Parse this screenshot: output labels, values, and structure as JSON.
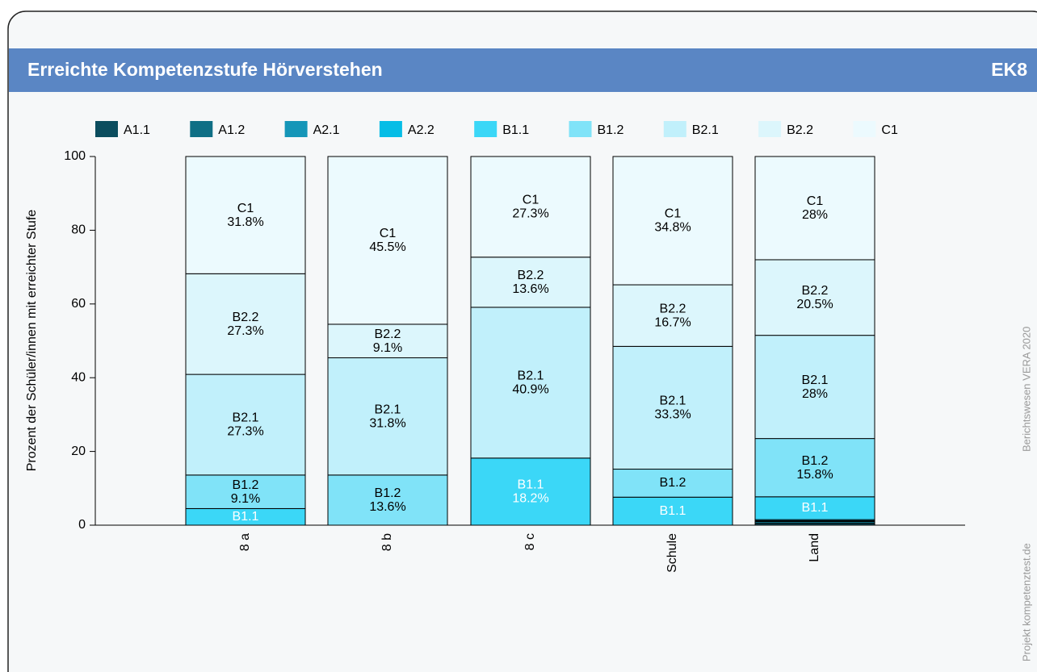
{
  "chart_data": {
    "type": "stacked_bar",
    "title": "Erreichte Kompetenzstufe Hörverstehen",
    "code": "EK8",
    "source": "Projekt kompetenztest.de",
    "note": "Berichtswesen VERA 2020",
    "y_label": "Prozent der Schüler/innen mit erreichter Stufe",
    "categories": [
      "8 a",
      "8 b",
      "8 c",
      "Schule",
      "Land"
    ],
    "ylim": [
      0,
      100
    ],
    "yticks": [
      0,
      20,
      40,
      60,
      80,
      100
    ],
    "legend": "top",
    "series": [
      {
        "name": "A1.1",
        "color": "#0b4d5e",
        "values": [
          0,
          0,
          0,
          0,
          0.5
        ],
        "value_labels": [
          null,
          null,
          null,
          null,
          null
        ]
      },
      {
        "name": "A1.2",
        "color": "#0f6f85",
        "values": [
          0,
          0,
          0,
          0,
          0.5
        ],
        "value_labels": [
          null,
          null,
          null,
          null,
          null
        ]
      },
      {
        "name": "A2.1",
        "color": "#1596b8",
        "values": [
          0,
          0,
          0,
          0,
          0.2
        ],
        "value_labels": [
          null,
          null,
          null,
          null,
          null
        ]
      },
      {
        "name": "A2.2",
        "color": "#06bde6",
        "values": [
          0,
          0,
          0,
          0,
          0.3
        ],
        "value_labels": [
          null,
          null,
          null,
          null,
          null
        ]
      },
      {
        "name": "B1.1",
        "color": "#3bd7f7",
        "values": [
          4.5,
          0,
          18.2,
          7.6,
          6.2
        ],
        "value_labels": [
          null,
          null,
          "18.2%",
          null,
          null
        ]
      },
      {
        "name": "B1.2",
        "color": "#80e3f8",
        "values": [
          9.1,
          13.6,
          0,
          7.6,
          15.8
        ],
        "value_labels": [
          "9.1%",
          "13.6%",
          null,
          null,
          "15.8%"
        ]
      },
      {
        "name": "B2.1",
        "color": "#c1f0fb",
        "values": [
          27.3,
          31.8,
          40.9,
          33.3,
          28
        ],
        "value_labels": [
          "27.3%",
          "31.8%",
          "40.9%",
          "33.3%",
          "28%"
        ]
      },
      {
        "name": "B2.2",
        "color": "#dcf6fc",
        "values": [
          27.3,
          9.1,
          13.6,
          16.7,
          20.5
        ],
        "value_labels": [
          "27.3%",
          "9.1%",
          "13.6%",
          "16.7%",
          "20.5%"
        ]
      },
      {
        "name": "C1",
        "color": "#ecfafe",
        "values": [
          31.8,
          45.5,
          27.3,
          34.8,
          28
        ],
        "value_labels": [
          "31.8%",
          "45.5%",
          "27.3%",
          "34.8%",
          "28%"
        ]
      }
    ]
  }
}
